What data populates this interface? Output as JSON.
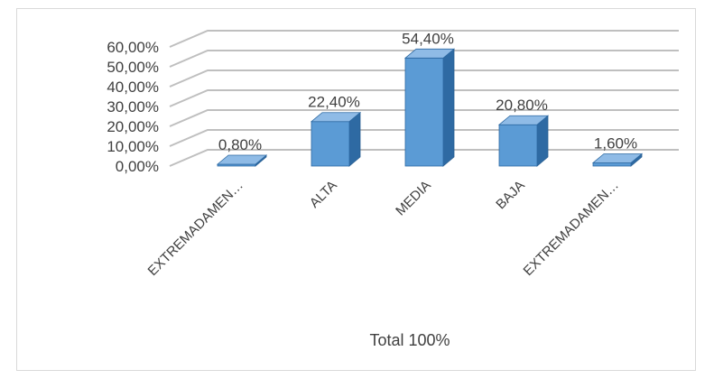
{
  "chart_data": {
    "type": "bar",
    "style": "3d-column",
    "categories": [
      "EXTREMADAMEN…",
      "ALTA",
      "MEDIA",
      "BAJA",
      "EXTREMADAMEN…"
    ],
    "values": [
      0.8,
      22.4,
      54.4,
      20.8,
      1.6
    ],
    "data_labels": [
      "0,80%",
      "22,40%",
      "54,40%",
      "20,80%",
      "1,60%"
    ],
    "y_tick_labels": [
      "0,00%",
      "10,00%",
      "20,00%",
      "30,00%",
      "40,00%",
      "50,00%",
      "60,00%"
    ],
    "ylim": [
      0,
      60
    ],
    "xlabel": "Total 100%",
    "grid": true,
    "legend": "none",
    "colors": {
      "bar_front": "#5b9bd5",
      "bar_side": "#2e6aa3",
      "bar_top": "#8fbbe6",
      "grid": "#bfbfbf",
      "text": "#404040"
    }
  }
}
